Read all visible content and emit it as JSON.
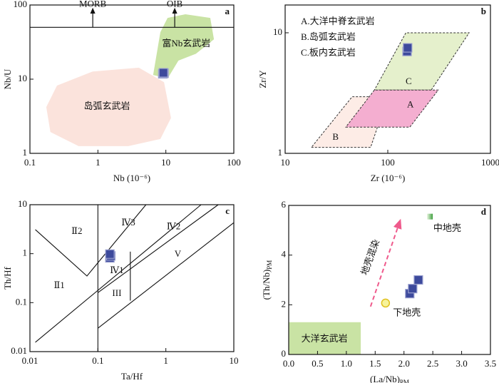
{
  "chart_data": [
    {
      "type": "scatter",
      "panel_label": "a",
      "xlabel": "Nb (10⁻⁶)",
      "ylabel": "Nb/U",
      "xscale": "log",
      "yscale": "log",
      "xlim": [
        0.1,
        100
      ],
      "ylim": [
        1,
        100
      ],
      "xticks": [
        0.1,
        1,
        10,
        100
      ],
      "yticks": [
        1,
        10,
        100
      ],
      "regions": [
        {
          "color": "#fbe3dc",
          "x": [
            0.174,
            0.25,
            0.84,
            4.0,
            9.4,
            11.9,
            8.3,
            2.8,
            0.52,
            0.2
          ],
          "y": [
            4.2,
            8.2,
            12.7,
            14.3,
            9.1,
            3.0,
            1.56,
            1.25,
            1.25,
            1.94
          ]
        },
        {
          "color": "#c9e3a4",
          "x": [
            6.5,
            8.3,
            10.6,
            19.4,
            45,
            51,
            27.7,
            15.3,
            10.6
          ],
          "y": [
            11.4,
            43,
            67,
            75,
            67,
            34.5,
            22,
            17.8,
            10.2
          ]
        }
      ],
      "lines": [
        {
          "x": [
            0.1,
            100
          ],
          "y": [
            50,
            50
          ]
        }
      ],
      "arrows": [
        {
          "x": [
            0.84,
            0.84
          ],
          "y": [
            50,
            85
          ]
        },
        {
          "x": [
            13.5,
            13.5
          ],
          "y": [
            50,
            85
          ]
        }
      ],
      "annotations": [
        {
          "text": "MORB",
          "x": 0.84,
          "y": 85
        },
        {
          "text": "OIB",
          "x": 13.5,
          "y": 85
        },
        {
          "text": "富Nb玄武岩",
          "x": 20,
          "y": 29.5
        },
        {
          "text": "岛弧玄武岩",
          "x": 1.36,
          "y": 4.2
        }
      ],
      "series": [
        {
          "marker": "square",
          "color": "#3d4a9c",
          "x": [
            9.0,
            9.4,
            9.2
          ],
          "y": [
            11.8,
            12.0,
            12.2
          ]
        }
      ]
    },
    {
      "type": "scatter",
      "panel_label": "b",
      "xlabel": "Zr (10⁻⁶)",
      "ylabel": "Zr/Y",
      "xscale": "log",
      "yscale": "log",
      "xlim": [
        10,
        1000
      ],
      "ylim": [
        1,
        17
      ],
      "xticks": [
        10,
        100,
        1000
      ],
      "yticks": [
        1,
        10
      ],
      "region_border": "dashed",
      "notes": [
        "A.大洋中脊玄武岩",
        "B.岛弧玄武岩",
        "C.板内玄武岩"
      ],
      "regions": [
        {
          "color": "#fdece6",
          "x": [
            18,
            68,
            100,
            45
          ],
          "y": [
            1.12,
            1.12,
            2.95,
            2.95
          ]
        },
        {
          "color": "#e5f0cc",
          "x": [
            74,
            265,
            620,
            150
          ],
          "y": [
            3.35,
            3.35,
            10,
            10
          ]
        },
        {
          "color": "#f4aed0",
          "x": [
            39,
            164,
            310,
            74
          ],
          "y": [
            1.65,
            1.65,
            3.35,
            3.35
          ]
        }
      ],
      "annotations": [
        {
          "text": "A",
          "x": 166,
          "y": 2.5
        },
        {
          "text": "B",
          "x": 31,
          "y": 1.35
        },
        {
          "text": "C",
          "x": 160,
          "y": 3.9
        }
      ],
      "series": [
        {
          "marker": "square",
          "color": "#3d4a9c",
          "x": [
            154,
            156
          ],
          "y": [
            7.0,
            7.5
          ]
        }
      ]
    },
    {
      "type": "scatter",
      "panel_label": "c",
      "xlabel": "Ta/Hf",
      "ylabel": "Th/Hf",
      "xscale": "log",
      "yscale": "log",
      "xlim": [
        0.01,
        10
      ],
      "ylim": [
        0.01,
        10
      ],
      "xticks": [
        0.01,
        0.1,
        1,
        10
      ],
      "yticks": [
        0.01,
        0.1,
        1,
        10
      ],
      "lines": [
        {
          "x": [
            0.1,
            0.1
          ],
          "y": [
            0.01,
            10
          ]
        },
        {
          "x": [
            0.012,
            0.069,
            0.51
          ],
          "y": [
            3.1,
            0.35,
            10
          ]
        },
        {
          "x": [
            0.012,
            3.3
          ],
          "y": [
            0.0155,
            10
          ]
        },
        {
          "x": [
            0.1,
            5.9
          ],
          "y": [
            0.16,
            10
          ]
        },
        {
          "x": [
            0.1,
            10
          ],
          "y": [
            0.03,
            4.3
          ]
        },
        {
          "x": [
            0.3,
            0.3
          ],
          "y": [
            0.11,
            1.1
          ]
        }
      ],
      "annotations": [
        {
          "text": "Ⅱ2",
          "x": 0.049,
          "y": 2.8
        },
        {
          "text": "Ⅱ1",
          "x": 0.027,
          "y": 0.22
        },
        {
          "text": "Ⅳ3",
          "x": 0.28,
          "y": 4.2
        },
        {
          "text": "Ⅳ2",
          "x": 1.3,
          "y": 3.5
        },
        {
          "text": "Ⅳ1",
          "x": 0.19,
          "y": 0.44
        },
        {
          "text": "III",
          "x": 0.19,
          "y": 0.15
        },
        {
          "text": "V",
          "x": 1.5,
          "y": 0.96
        }
      ],
      "series": [
        {
          "marker": "square",
          "color": "#3d4a9c",
          "x": [
            0.15,
            0.155,
            0.15
          ],
          "y": [
            0.82,
            0.9,
            0.98
          ]
        }
      ]
    },
    {
      "type": "scatter",
      "panel_label": "d",
      "xlabel": "(La/Nb)",
      "xlabel_sub": "PM",
      "ylabel": "(Th/Nb)",
      "ylabel_sub": "PM",
      "xscale": "linear",
      "yscale": "linear",
      "xlim": [
        0,
        3.5
      ],
      "ylim": [
        0,
        6
      ],
      "xticks": [
        {
          "value": 0,
          "label": "0.0"
        },
        0.5,
        {
          "value": 1,
          "label": "1.0"
        },
        1.5,
        {
          "value": 2,
          "label": "2.0"
        },
        2.5,
        {
          "value": 3,
          "label": "3.0"
        },
        3.5
      ],
      "yticks": [
        0,
        2,
        4,
        6
      ],
      "regions": [
        {
          "color": "#c9e3a4",
          "x": [
            0,
            1.25,
            1.25,
            0
          ],
          "y": [
            0,
            0,
            1.3,
            1.3
          ]
        }
      ],
      "arrows": [
        {
          "x": [
            1.42,
            1.92
          ],
          "y": [
            1.93,
            5.3
          ],
          "dashed": true,
          "color": "#ef5a8c"
        }
      ],
      "annotations": [
        {
          "text": "大洋玄武岩",
          "x": 0.62,
          "y": 0.6
        },
        {
          "text": "下地壳",
          "x": 2.05,
          "y": 1.65
        },
        {
          "text": "中地壳",
          "x": 2.75,
          "y": 5.05
        },
        {
          "text": "地壳混染",
          "x": 1.43,
          "y": 3.9,
          "rotate": -70
        }
      ],
      "series": [
        {
          "marker": "square",
          "color": "#3d4a9c",
          "x": [
            2.1,
            2.15,
            2.25
          ],
          "y": [
            2.45,
            2.65,
            3.0
          ]
        },
        {
          "marker": "circle",
          "color": "#f7f39a",
          "x": [
            1.68
          ],
          "y": [
            2.07
          ]
        },
        {
          "marker": "gradient-square",
          "color": "#5cb85c",
          "x": [
            2.45
          ],
          "y": [
            5.55
          ]
        }
      ]
    }
  ]
}
